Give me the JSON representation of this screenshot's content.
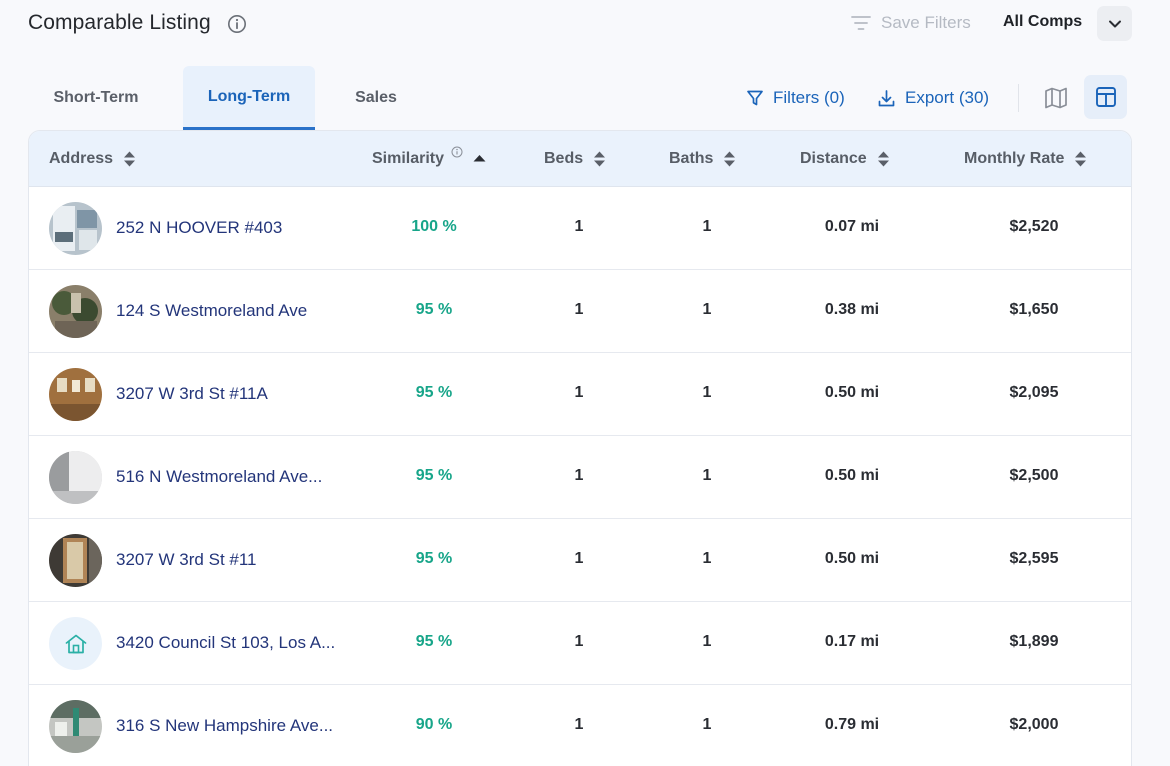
{
  "header": {
    "title": "Comparable Listing",
    "info_icon": "info-circle-icon",
    "save_filters": "Save Filters",
    "comps_select": "All Comps"
  },
  "tabs": [
    {
      "label": "Short-Term",
      "active": false
    },
    {
      "label": "Long-Term",
      "active": true
    },
    {
      "label": "Sales",
      "active": false
    }
  ],
  "toolbar": {
    "filters_label": "Filters (0)",
    "export_label": "Export (30)"
  },
  "table": {
    "columns": [
      "Address",
      "Similarity",
      "Beds",
      "Baths",
      "Distance",
      "Monthly Rate"
    ],
    "sorted_column": "Similarity",
    "rows": [
      {
        "address": "252 N HOOVER #403",
        "similarity": "100 %",
        "beds": "1",
        "baths": "1",
        "distance": "0.07 mi",
        "rate": "$2,520",
        "thumb": "photo-interior-window"
      },
      {
        "address": "124 S Westmoreland Ave",
        "similarity": "95 %",
        "beds": "1",
        "baths": "1",
        "distance": "0.38 mi",
        "rate": "$1,650",
        "thumb": "photo-exterior-plants"
      },
      {
        "address": "3207 W 3rd St #11A",
        "similarity": "95 %",
        "beds": "1",
        "baths": "1",
        "distance": "0.50 mi",
        "rate": "$2,095",
        "thumb": "photo-hallway-wood"
      },
      {
        "address": "516 N Westmoreland Ave...",
        "similarity": "95 %",
        "beds": "1",
        "baths": "1",
        "distance": "0.50 mi",
        "rate": "$2,500",
        "thumb": "photo-white-room"
      },
      {
        "address": "3207 W 3rd St #11",
        "similarity": "95 %",
        "beds": "1",
        "baths": "1",
        "distance": "0.50 mi",
        "rate": "$2,595",
        "thumb": "photo-door-wood"
      },
      {
        "address": "3420 Council St 103, Los A...",
        "similarity": "95 %",
        "beds": "1",
        "baths": "1",
        "distance": "0.17 mi",
        "rate": "$1,899",
        "thumb": "house-icon"
      },
      {
        "address": "316 S New Hampshire Ave...",
        "similarity": "90 %",
        "beds": "1",
        "baths": "1",
        "distance": "0.79 mi",
        "rate": "$2,000",
        "thumb": "photo-lobby"
      }
    ]
  },
  "colors": {
    "accent": "#1b64b9",
    "similarity": "#17a589",
    "address": "#23357a",
    "header_bg": "#eaf2fc"
  }
}
